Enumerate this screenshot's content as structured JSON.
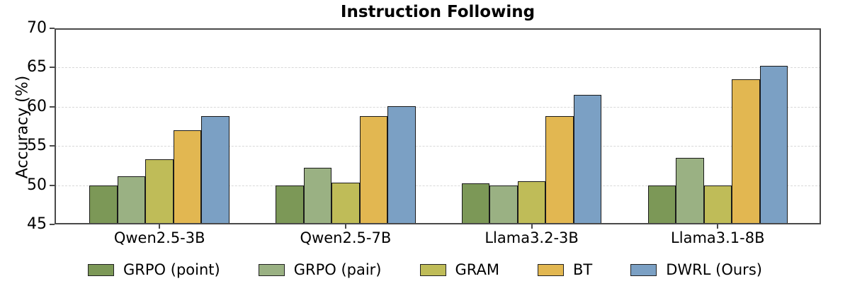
{
  "chart_data": {
    "type": "bar",
    "title": "Instruction Following",
    "xlabel": "",
    "ylabel": "Accuracy (%)",
    "ylim": [
      45,
      70
    ],
    "yticks": [
      45,
      50,
      55,
      60,
      65,
      70
    ],
    "grid": "horizontal dashed lines at 50, 55, 60, 65",
    "legend_position": "bottom center, horizontal row",
    "categories": [
      "Qwen2.5-3B",
      "Qwen2.5-7B",
      "Llama3.2-3B",
      "Llama3.1-8B"
    ],
    "series": [
      {
        "name": "GRPO (point)",
        "color": "#7c9857",
        "values": [
          50.0,
          50.0,
          50.2,
          50.0
        ]
      },
      {
        "name": "GRPO (pair)",
        "color": "#9ab183",
        "values": [
          51.1,
          52.2,
          50.0,
          53.5
        ]
      },
      {
        "name": "GRAM",
        "color": "#bfbc58",
        "values": [
          53.3,
          50.3,
          50.5,
          50.0
        ]
      },
      {
        "name": "BT",
        "color": "#e2b751",
        "values": [
          57.0,
          58.8,
          58.8,
          63.5
        ]
      },
      {
        "name": "DWRL (Ours)",
        "color": "#7ba0c4",
        "values": [
          58.8,
          60.1,
          61.5,
          65.2
        ]
      }
    ],
    "bar_edge_color": "#1a1a1a",
    "spine_color": "#4a4a4a",
    "gridline_color": "#d8d8d8"
  }
}
